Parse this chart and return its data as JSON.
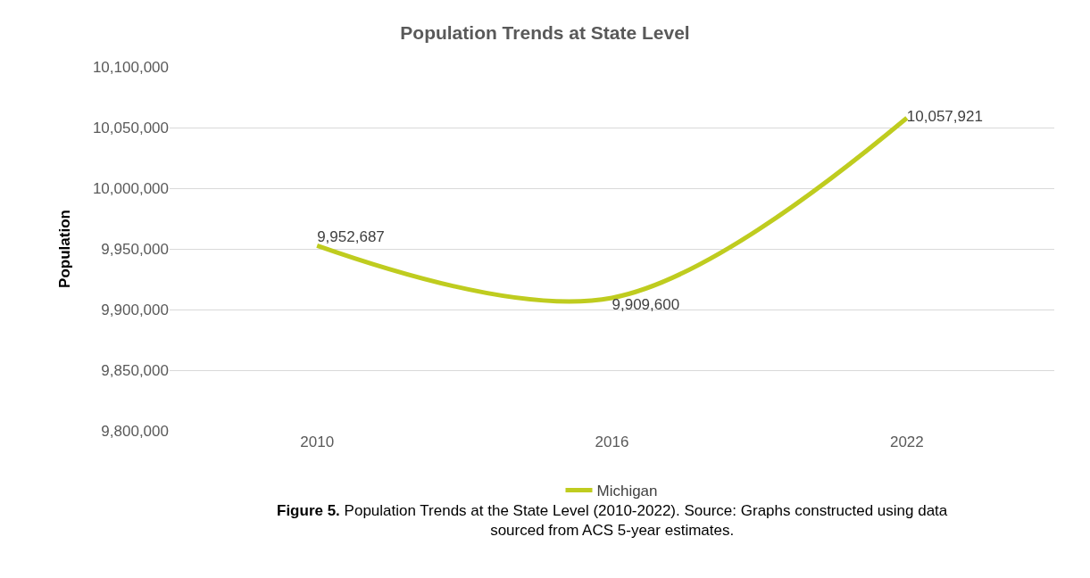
{
  "chart_data": {
    "type": "line",
    "title": "Population Trends at State Level",
    "ylabel": "Population",
    "categories": [
      "2010",
      "2016",
      "2022"
    ],
    "series": [
      {
        "name": "Michigan",
        "color": "#bfcc1f",
        "values": [
          9952687,
          9909600,
          10057921
        ],
        "value_labels": [
          "9,952,687",
          "9,909,600",
          "10,057,921"
        ]
      }
    ],
    "ylim": [
      9800000,
      10100000
    ],
    "yticks": [
      {
        "value": 9800000,
        "label": "9,800,000"
      },
      {
        "value": 9850000,
        "label": "9,850,000"
      },
      {
        "value": 9900000,
        "label": "9,900,000"
      },
      {
        "value": 9950000,
        "label": "9,950,000"
      },
      {
        "value": 10000000,
        "label": "10,000,000"
      },
      {
        "value": 10050000,
        "label": "10,050,000"
      },
      {
        "value": 10100000,
        "label": "10,100,000"
      }
    ],
    "grid": "y",
    "legend": "bottom",
    "marker": "none",
    "line_style": "solid",
    "annotations": [
      "Figure 5. Population Trends at the State Level (2010-2022). Source: Graphs constructed using data sourced from ACS 5-year estimates."
    ]
  }
}
